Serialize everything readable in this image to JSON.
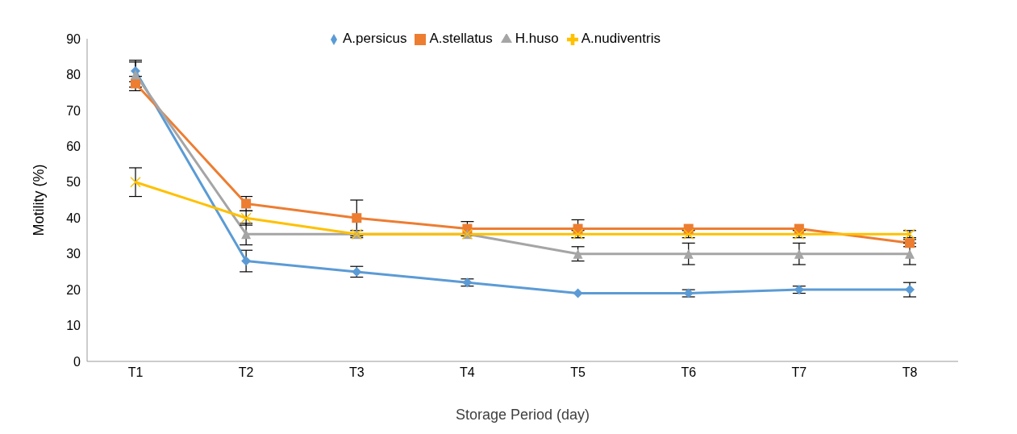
{
  "chart_data": {
    "type": "line",
    "xlabel": "Storage Period (day)",
    "ylabel": "Motility (%)",
    "categories": [
      "T1",
      "T2",
      "T3",
      "T4",
      "T5",
      "T6",
      "T7",
      "T8"
    ],
    "ylim": [
      0,
      90
    ],
    "yticks": [
      0,
      10,
      20,
      30,
      40,
      50,
      60,
      70,
      80,
      90
    ],
    "grid": false,
    "legend": "top",
    "series": [
      {
        "name": "A.persicus",
        "color": "#5b9bd5",
        "marker": "diamond",
        "values": [
          81,
          28,
          25,
          22,
          19,
          19,
          20,
          20
        ],
        "errors": [
          3,
          3,
          1.5,
          1,
          null,
          1,
          1,
          2
        ]
      },
      {
        "name": "A.stellatus",
        "color": "#ed7d31",
        "marker": "square",
        "values": [
          77.5,
          44,
          40,
          37,
          37,
          37,
          37,
          33
        ],
        "errors": [
          2,
          2,
          5,
          2,
          2.5,
          null,
          null,
          1
        ]
      },
      {
        "name": "H.huso",
        "color": "#a5a5a5",
        "marker": "triangle",
        "values": [
          80,
          35.5,
          35.5,
          35.5,
          30,
          30,
          30,
          30
        ],
        "errors": [
          3.5,
          3,
          null,
          null,
          2,
          3,
          3,
          3
        ]
      },
      {
        "name": "A.nudiventris",
        "color": "#ffc000",
        "marker": "cross",
        "values": [
          50,
          40,
          35.5,
          35.5,
          35.5,
          35.5,
          35.5,
          35.5
        ],
        "errors": [
          4,
          2,
          1,
          null,
          1,
          1,
          1,
          1
        ]
      }
    ]
  }
}
